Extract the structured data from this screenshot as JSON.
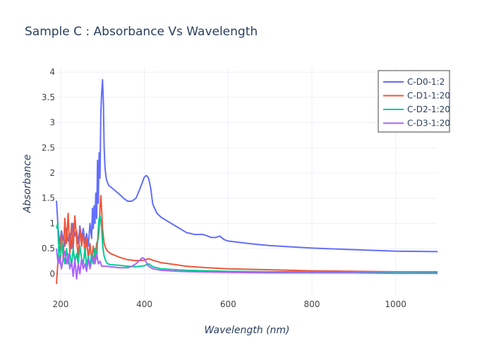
{
  "chart_data": {
    "type": "line",
    "title": "Sample C : Absorbance Vs Wavelength",
    "xlabel": "Wavelength (nm)",
    "ylabel": "Absorbance",
    "xlim": [
      190,
      1100
    ],
    "ylim": [
      -0.45,
      4.1
    ],
    "xticks": [
      200,
      400,
      600,
      800,
      1000
    ],
    "yticks": [
      0,
      0.5,
      1,
      1.5,
      2,
      2.5,
      3,
      3.5,
      4
    ],
    "xtick_labels": [
      "200",
      "400",
      "600",
      "800",
      "1000"
    ],
    "ytick_labels": [
      "0",
      "0.5",
      "1",
      "1.5",
      "2",
      "2.5",
      "3",
      "3.5",
      "4"
    ],
    "grid": true,
    "legend_position": "top-right",
    "series": [
      {
        "name": "C-D0-1:2",
        "color": "#636efa",
        "x": [
          190,
          194,
          198,
          202,
          206,
          210,
          214,
          218,
          222,
          226,
          230,
          234,
          238,
          242,
          246,
          250,
          254,
          258,
          262,
          266,
          270,
          274,
          276,
          278,
          280,
          282,
          284,
          286,
          288,
          290,
          292,
          294,
          296,
          298,
          300,
          302,
          304,
          306,
          308,
          310,
          315,
          320,
          330,
          340,
          350,
          360,
          370,
          380,
          390,
          400,
          405,
          410,
          415,
          420,
          430,
          440,
          460,
          480,
          500,
          520,
          540,
          560,
          570,
          580,
          590,
          600,
          650,
          700,
          800,
          900,
          1000,
          1100
        ],
        "y": [
          1.45,
          0.9,
          0.6,
          0.85,
          0.7,
          0.55,
          0.9,
          0.65,
          0.8,
          0.5,
          1.0,
          0.75,
          0.85,
          0.6,
          0.95,
          0.7,
          0.9,
          0.6,
          0.8,
          0.55,
          1.0,
          0.7,
          1.3,
          0.9,
          1.35,
          1.0,
          1.6,
          1.1,
          2.25,
          1.4,
          2.4,
          1.9,
          3.2,
          3.6,
          3.85,
          3.4,
          2.5,
          2.1,
          1.95,
          1.85,
          1.75,
          1.72,
          1.65,
          1.58,
          1.5,
          1.44,
          1.44,
          1.5,
          1.7,
          1.92,
          1.95,
          1.9,
          1.7,
          1.38,
          1.2,
          1.12,
          1.02,
          0.92,
          0.82,
          0.78,
          0.78,
          0.72,
          0.72,
          0.75,
          0.68,
          0.65,
          0.6,
          0.56,
          0.51,
          0.48,
          0.45,
          0.44
        ]
      },
      {
        "name": "C-D1-1:20",
        "color": "#ef553b",
        "x": [
          190,
          194,
          198,
          202,
          206,
          210,
          214,
          218,
          222,
          226,
          230,
          234,
          238,
          242,
          246,
          250,
          254,
          258,
          262,
          266,
          270,
          274,
          278,
          282,
          286,
          290,
          292,
          294,
          296,
          298,
          300,
          304,
          308,
          312,
          320,
          340,
          360,
          380,
          400,
          410,
          420,
          440,
          460,
          500,
          550,
          600,
          700,
          800,
          900,
          1000,
          1100
        ],
        "y": [
          -0.2,
          0.3,
          0.5,
          0.8,
          0.3,
          1.1,
          0.6,
          1.2,
          0.4,
          1.0,
          0.5,
          1.15,
          0.7,
          0.3,
          0.9,
          0.55,
          0.8,
          0.4,
          0.7,
          0.3,
          0.6,
          0.25,
          0.55,
          0.3,
          0.6,
          0.7,
          0.9,
          1.3,
          1.55,
          1.25,
          0.9,
          0.6,
          0.5,
          0.45,
          0.4,
          0.33,
          0.28,
          0.26,
          0.27,
          0.3,
          0.27,
          0.22,
          0.2,
          0.15,
          0.12,
          0.1,
          0.08,
          0.06,
          0.05,
          0.04,
          0.03
        ]
      },
      {
        "name": "C-D2-1:20",
        "color": "#00cc96",
        "x": [
          190,
          193,
          196,
          199,
          202,
          206,
          210,
          214,
          218,
          222,
          226,
          230,
          234,
          238,
          242,
          246,
          250,
          254,
          258,
          262,
          266,
          270,
          274,
          278,
          282,
          286,
          290,
          292,
          294,
          296,
          298,
          300,
          302,
          304,
          308,
          312,
          320,
          340,
          360,
          380,
          400,
          410,
          420,
          440,
          500,
          600,
          700,
          800,
          900,
          1000,
          1100
        ],
        "y": [
          0.9,
          1.0,
          0.3,
          0.2,
          0.65,
          0.4,
          0.2,
          0.5,
          0.2,
          0.4,
          0.15,
          0.5,
          0.25,
          0.4,
          0.2,
          0.55,
          0.3,
          0.2,
          0.5,
          0.15,
          0.35,
          0.15,
          0.4,
          0.2,
          0.5,
          0.3,
          0.9,
          1.1,
          1.15,
          1.05,
          0.9,
          0.6,
          0.45,
          0.35,
          0.25,
          0.2,
          0.18,
          0.17,
          0.15,
          0.14,
          0.16,
          0.2,
          0.14,
          0.1,
          0.07,
          0.05,
          0.04,
          0.04,
          0.04,
          0.04,
          0.04
        ]
      },
      {
        "name": "C-D3-1:20",
        "color": "#ab63fa",
        "x": [
          190,
          194,
          198,
          202,
          206,
          210,
          214,
          218,
          222,
          226,
          230,
          234,
          238,
          242,
          246,
          250,
          254,
          258,
          262,
          266,
          270,
          274,
          278,
          282,
          286,
          290,
          294,
          298,
          302,
          306,
          310,
          320,
          340,
          360,
          370,
          380,
          390,
          395,
          400,
          405,
          410,
          420,
          440,
          480,
          520,
          600,
          700,
          800,
          900,
          1000,
          1100
        ],
        "y": [
          0.5,
          0.2,
          0.35,
          0.1,
          0.3,
          0.45,
          0.2,
          0.4,
          0.1,
          0.25,
          -0.05,
          0.3,
          -0.1,
          0.2,
          0.0,
          0.3,
          0.1,
          0.2,
          0.05,
          0.3,
          0.1,
          0.25,
          0.35,
          0.2,
          0.4,
          0.2,
          0.25,
          0.15,
          0.15,
          0.15,
          0.15,
          0.14,
          0.12,
          0.12,
          0.15,
          0.2,
          0.28,
          0.32,
          0.3,
          0.22,
          0.15,
          0.1,
          0.07,
          0.05,
          0.04,
          0.03,
          0.02,
          0.02,
          0.02,
          0.01,
          0.01
        ]
      }
    ]
  }
}
